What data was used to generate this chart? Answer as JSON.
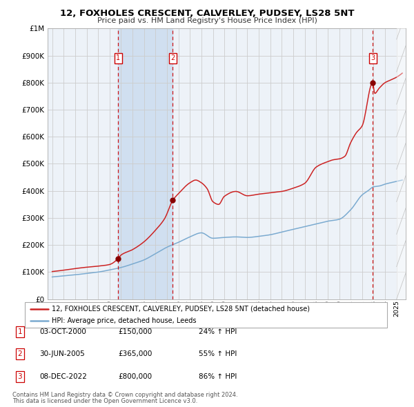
{
  "title1": "12, FOXHOLES CRESCENT, CALVERLEY, PUDSEY, LS28 5NT",
  "title2": "Price paid vs. HM Land Registry's House Price Index (HPI)",
  "ylim": [
    0,
    1000000
  ],
  "yticks": [
    0,
    100000,
    200000,
    300000,
    400000,
    500000,
    600000,
    700000,
    800000,
    900000,
    1000000
  ],
  "ytick_labels": [
    "£0",
    "£100K",
    "£200K",
    "£300K",
    "£400K",
    "£500K",
    "£600K",
    "£700K",
    "£800K",
    "£900K",
    "£1M"
  ],
  "hpi_color": "#7aaad0",
  "price_color": "#cc2222",
  "marker_color": "#880000",
  "grid_color": "#cccccc",
  "bg_color": "#ffffff",
  "plot_bg_color": "#edf2f8",
  "shaded_color": "#d0dff0",
  "sale_year_floats": [
    2000.75,
    2005.5,
    2022.92
  ],
  "sale_prices": [
    150000,
    365000,
    800000
  ],
  "sale_labels": [
    "1",
    "2",
    "3"
  ],
  "shaded_region": [
    2000.75,
    2005.5
  ],
  "legend_entries": [
    "12, FOXHOLES CRESCENT, CALVERLEY, PUDSEY, LS28 5NT (detached house)",
    "HPI: Average price, detached house, Leeds"
  ],
  "table_rows": [
    [
      "1",
      "03-OCT-2000",
      "£150,000",
      "24% ↑ HPI"
    ],
    [
      "2",
      "30-JUN-2005",
      "£365,000",
      "55% ↑ HPI"
    ],
    [
      "3",
      "08-DEC-2022",
      "£800,000",
      "86% ↑ HPI"
    ]
  ],
  "footnote1": "Contains HM Land Registry data © Crown copyright and database right 2024.",
  "footnote2": "This data is licensed under the Open Government Licence v3.0.",
  "hpi_x_pts": [
    1995,
    1996,
    1997,
    1998,
    1999,
    2000,
    2001,
    2002,
    2003,
    2004,
    2005,
    2006,
    2007,
    2008,
    2009,
    2010,
    2011,
    2012,
    2013,
    2014,
    2015,
    2016,
    2017,
    2018,
    2019,
    2020,
    2021,
    2022,
    2022.5,
    2023,
    2023.5,
    2024,
    2025,
    2025.5
  ],
  "hpi_y_pts": [
    82000,
    86000,
    90000,
    95000,
    100000,
    108000,
    117000,
    130000,
    145000,
    168000,
    192000,
    210000,
    230000,
    245000,
    225000,
    228000,
    230000,
    228000,
    232000,
    238000,
    248000,
    258000,
    268000,
    278000,
    288000,
    295000,
    330000,
    385000,
    400000,
    415000,
    418000,
    425000,
    435000,
    440000
  ],
  "red_x_pts": [
    1995,
    1996,
    1997,
    1998,
    1999,
    2000,
    2000.75,
    2001,
    2002,
    2003,
    2004,
    2004.8,
    2005.5,
    2006,
    2007,
    2007.5,
    2008,
    2008.5,
    2009,
    2009.5,
    2010,
    2011,
    2012,
    2013,
    2014,
    2015,
    2016,
    2017,
    2018,
    2019,
    2019.5,
    2020,
    2020.5,
    2021,
    2021.5,
    2022,
    2022.92,
    2023.1,
    2023.5,
    2024,
    2024.5,
    2025,
    2025.5
  ],
  "red_y_pts": [
    102000,
    107000,
    113000,
    118000,
    122000,
    128000,
    150000,
    163000,
    183000,
    212000,
    255000,
    298000,
    365000,
    390000,
    430000,
    440000,
    430000,
    408000,
    360000,
    350000,
    380000,
    398000,
    382000,
    388000,
    393000,
    398000,
    410000,
    428000,
    488000,
    508000,
    515000,
    518000,
    528000,
    578000,
    615000,
    640000,
    800000,
    760000,
    780000,
    800000,
    810000,
    820000,
    835000
  ]
}
